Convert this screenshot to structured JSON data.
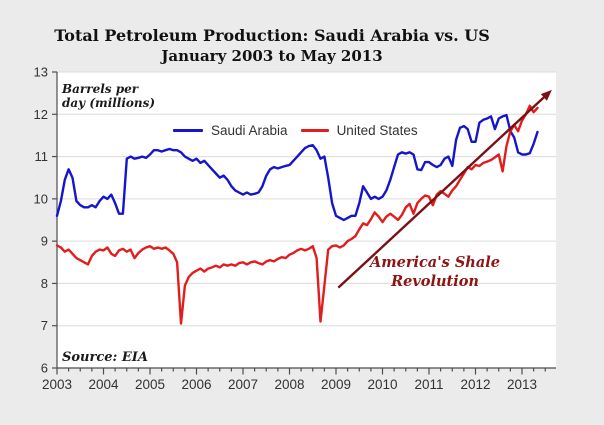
{
  "title": {
    "line1": "Total Petroleum Production: Saudi Arabia vs. US",
    "line2": "January 2003 to May 2013"
  },
  "axis_note": {
    "line1": "Barrels per",
    "line2": "day (millions)"
  },
  "source": "Source: EIA",
  "annotation": {
    "line1": "America's Shale",
    "line2": "Revolution"
  },
  "legend": {
    "items": [
      {
        "label": "Saudi Arabia",
        "color": "#1515cc"
      },
      {
        "label": "United States",
        "color": "#e21d1d"
      }
    ]
  },
  "colors": {
    "background": "#ebebeb",
    "plot_background": "#ffffff",
    "gridline": "#dcdcdc",
    "axis": "#4d4d4d",
    "tick_text": "#333333",
    "saudi_line": "#1515cc",
    "us_line": "#e21d1d",
    "arrow": "#7a1014",
    "annotation_text": "#8e1414"
  },
  "chart_data": {
    "type": "line",
    "title": "Total Petroleum Production: Saudi Arabia vs. US",
    "subtitle": "January 2003 to May 2013",
    "ylabel": "Barrels per day (millions)",
    "x_unit": "monthly from Jan 2003 to May 2013",
    "x_tick_labels": [
      "2003",
      "2004",
      "2005",
      "2006",
      "2007",
      "2008",
      "2009",
      "2010",
      "2011",
      "2012",
      "2013"
    ],
    "y_tick_labels": [
      "6",
      "7",
      "8",
      "9",
      "10",
      "11",
      "12",
      "13"
    ],
    "ylim": [
      6,
      13
    ],
    "xlim_years": [
      2003.0,
      2013.72
    ],
    "grid": "horizontal",
    "legend_position": "top-inside",
    "series": [
      {
        "name": "Saudi Arabia",
        "color": "#1515cc",
        "values": [
          9.6,
          9.95,
          10.45,
          10.7,
          10.5,
          9.95,
          9.85,
          9.8,
          9.8,
          9.85,
          9.8,
          9.95,
          10.05,
          10.0,
          10.1,
          9.9,
          9.65,
          9.65,
          10.95,
          11.0,
          10.95,
          10.97,
          11.0,
          10.97,
          11.05,
          11.15,
          11.15,
          11.12,
          11.15,
          11.18,
          11.15,
          11.15,
          11.1,
          11.0,
          10.95,
          10.9,
          10.95,
          10.85,
          10.9,
          10.8,
          10.7,
          10.6,
          10.5,
          10.55,
          10.45,
          10.3,
          10.2,
          10.15,
          10.1,
          10.15,
          10.1,
          10.12,
          10.15,
          10.3,
          10.55,
          10.7,
          10.75,
          10.72,
          10.75,
          10.78,
          10.8,
          10.9,
          11.0,
          11.1,
          11.2,
          11.25,
          11.27,
          11.15,
          10.95,
          11.0,
          10.5,
          9.9,
          9.6,
          9.55,
          9.5,
          9.55,
          9.6,
          9.6,
          9.9,
          10.3,
          10.15,
          10.0,
          10.05,
          10.0,
          10.05,
          10.2,
          10.45,
          10.75,
          11.05,
          11.1,
          11.07,
          11.1,
          11.05,
          10.7,
          10.68,
          10.87,
          10.87,
          10.8,
          10.75,
          10.8,
          10.95,
          11.0,
          10.78,
          11.4,
          11.68,
          11.72,
          11.65,
          11.35,
          11.35,
          11.8,
          11.87,
          11.9,
          11.95,
          11.65,
          11.9,
          11.95,
          11.98,
          11.6,
          11.45,
          11.1,
          11.05,
          11.05,
          11.08,
          11.3,
          11.58
        ]
      },
      {
        "name": "United States",
        "color": "#e21d1d",
        "values": [
          8.9,
          8.85,
          8.75,
          8.8,
          8.7,
          8.6,
          8.55,
          8.5,
          8.45,
          8.65,
          8.75,
          8.8,
          8.78,
          8.85,
          8.7,
          8.65,
          8.78,
          8.82,
          8.75,
          8.8,
          8.6,
          8.72,
          8.8,
          8.85,
          8.88,
          8.82,
          8.85,
          8.82,
          8.85,
          8.78,
          8.7,
          8.5,
          7.05,
          7.95,
          8.15,
          8.25,
          8.3,
          8.35,
          8.28,
          8.35,
          8.38,
          8.42,
          8.38,
          8.45,
          8.42,
          8.45,
          8.42,
          8.48,
          8.5,
          8.45,
          8.5,
          8.52,
          8.48,
          8.45,
          8.52,
          8.55,
          8.52,
          8.58,
          8.62,
          8.6,
          8.68,
          8.72,
          8.78,
          8.82,
          8.78,
          8.82,
          8.88,
          8.6,
          7.1,
          7.95,
          8.8,
          8.88,
          8.9,
          8.85,
          8.9,
          9.0,
          9.05,
          9.12,
          9.28,
          9.42,
          9.38,
          9.52,
          9.68,
          9.58,
          9.45,
          9.58,
          9.65,
          9.58,
          9.5,
          9.62,
          9.8,
          9.88,
          9.65,
          9.9,
          10.0,
          10.08,
          10.05,
          9.85,
          10.1,
          10.18,
          10.12,
          10.05,
          10.2,
          10.3,
          10.45,
          10.6,
          10.75,
          10.7,
          10.8,
          10.78,
          10.85,
          10.88,
          10.92,
          10.98,
          11.05,
          10.65,
          11.25,
          11.6,
          11.75,
          11.6,
          11.85,
          12.0,
          12.2,
          12.05,
          12.15
        ]
      }
    ],
    "arrow": {
      "x1": 2009.05,
      "y1": 7.9,
      "x2": 2013.47,
      "y2": 12.4
    }
  }
}
